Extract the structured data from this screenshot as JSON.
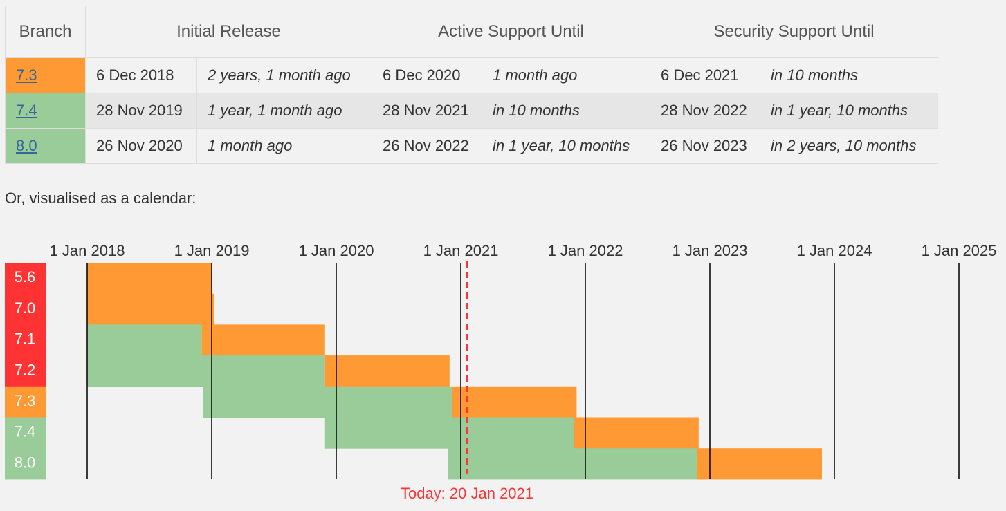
{
  "table": {
    "headers": [
      "Branch",
      "Initial Release",
      "Active Support Until",
      "Security Support Until"
    ],
    "rows": [
      {
        "branch": "7.3",
        "color": "#f93",
        "cells": [
          "6 Dec 2018",
          "2 years, 1 month ago",
          "6 Dec 2020",
          "1 month ago",
          "6 Dec 2021",
          "in 10 months"
        ]
      },
      {
        "branch": "7.4",
        "color": "#9c9",
        "cells": [
          "28 Nov 2019",
          "1 year, 1 month ago",
          "28 Nov 2021",
          "in 10 months",
          "28 Nov 2022",
          "in 1 year, 10 months"
        ]
      },
      {
        "branch": "8.0",
        "color": "#9c9",
        "cells": [
          "26 Nov 2020",
          "1 month ago",
          "26 Nov 2022",
          "in 1 year, 10 months",
          "26 Nov 2023",
          "in 2 years, 10 months"
        ]
      }
    ]
  },
  "intro": "Or, visualised as a calendar:",
  "calendar": {
    "xlim": [
      2018,
      2025
    ],
    "xticks": [
      {
        "value": 2018,
        "label": "1 Jan 2018"
      },
      {
        "value": 2019,
        "label": "1 Jan 2019"
      },
      {
        "value": 2020,
        "label": "1 Jan 2020"
      },
      {
        "value": 2021,
        "label": "1 Jan 2021"
      },
      {
        "value": 2022,
        "label": "1 Jan 2022"
      },
      {
        "value": 2023,
        "label": "1 Jan 2023"
      },
      {
        "value": 2024,
        "label": "1 Jan 2024"
      },
      {
        "value": 2025,
        "label": "1 Jan 2025"
      }
    ],
    "active_color": "#9c9",
    "security_color": "#f93",
    "branches": [
      {
        "name": "5.6",
        "color": "#f33",
        "active": null,
        "security": [
          2018,
          2019
        ]
      },
      {
        "name": "7.0",
        "color": "#f33",
        "active": null,
        "security": [
          2018,
          2019.02
        ]
      },
      {
        "name": "7.1",
        "color": "#f33",
        "active": [
          2018,
          2018.92
        ],
        "security": [
          2018.92,
          2019.91
        ]
      },
      {
        "name": "7.2",
        "color": "#f33",
        "active": [
          2018,
          2019.91
        ],
        "security": [
          2019.91,
          2020.91
        ]
      },
      {
        "name": "7.3",
        "color": "#f93",
        "active": [
          2018.93,
          2020.93
        ],
        "security": [
          2020.93,
          2021.93
        ]
      },
      {
        "name": "7.4",
        "color": "#9c9",
        "active": [
          2019.91,
          2021.91
        ],
        "security": [
          2021.91,
          2022.91
        ]
      },
      {
        "name": "8.0",
        "color": "#9c9",
        "active": [
          2020.9,
          2022.9
        ],
        "security": [
          2022.9,
          2023.9
        ]
      }
    ],
    "today": {
      "value": 2021.05,
      "label": "Today: 20 Jan 2021",
      "color": "#f33"
    }
  }
}
